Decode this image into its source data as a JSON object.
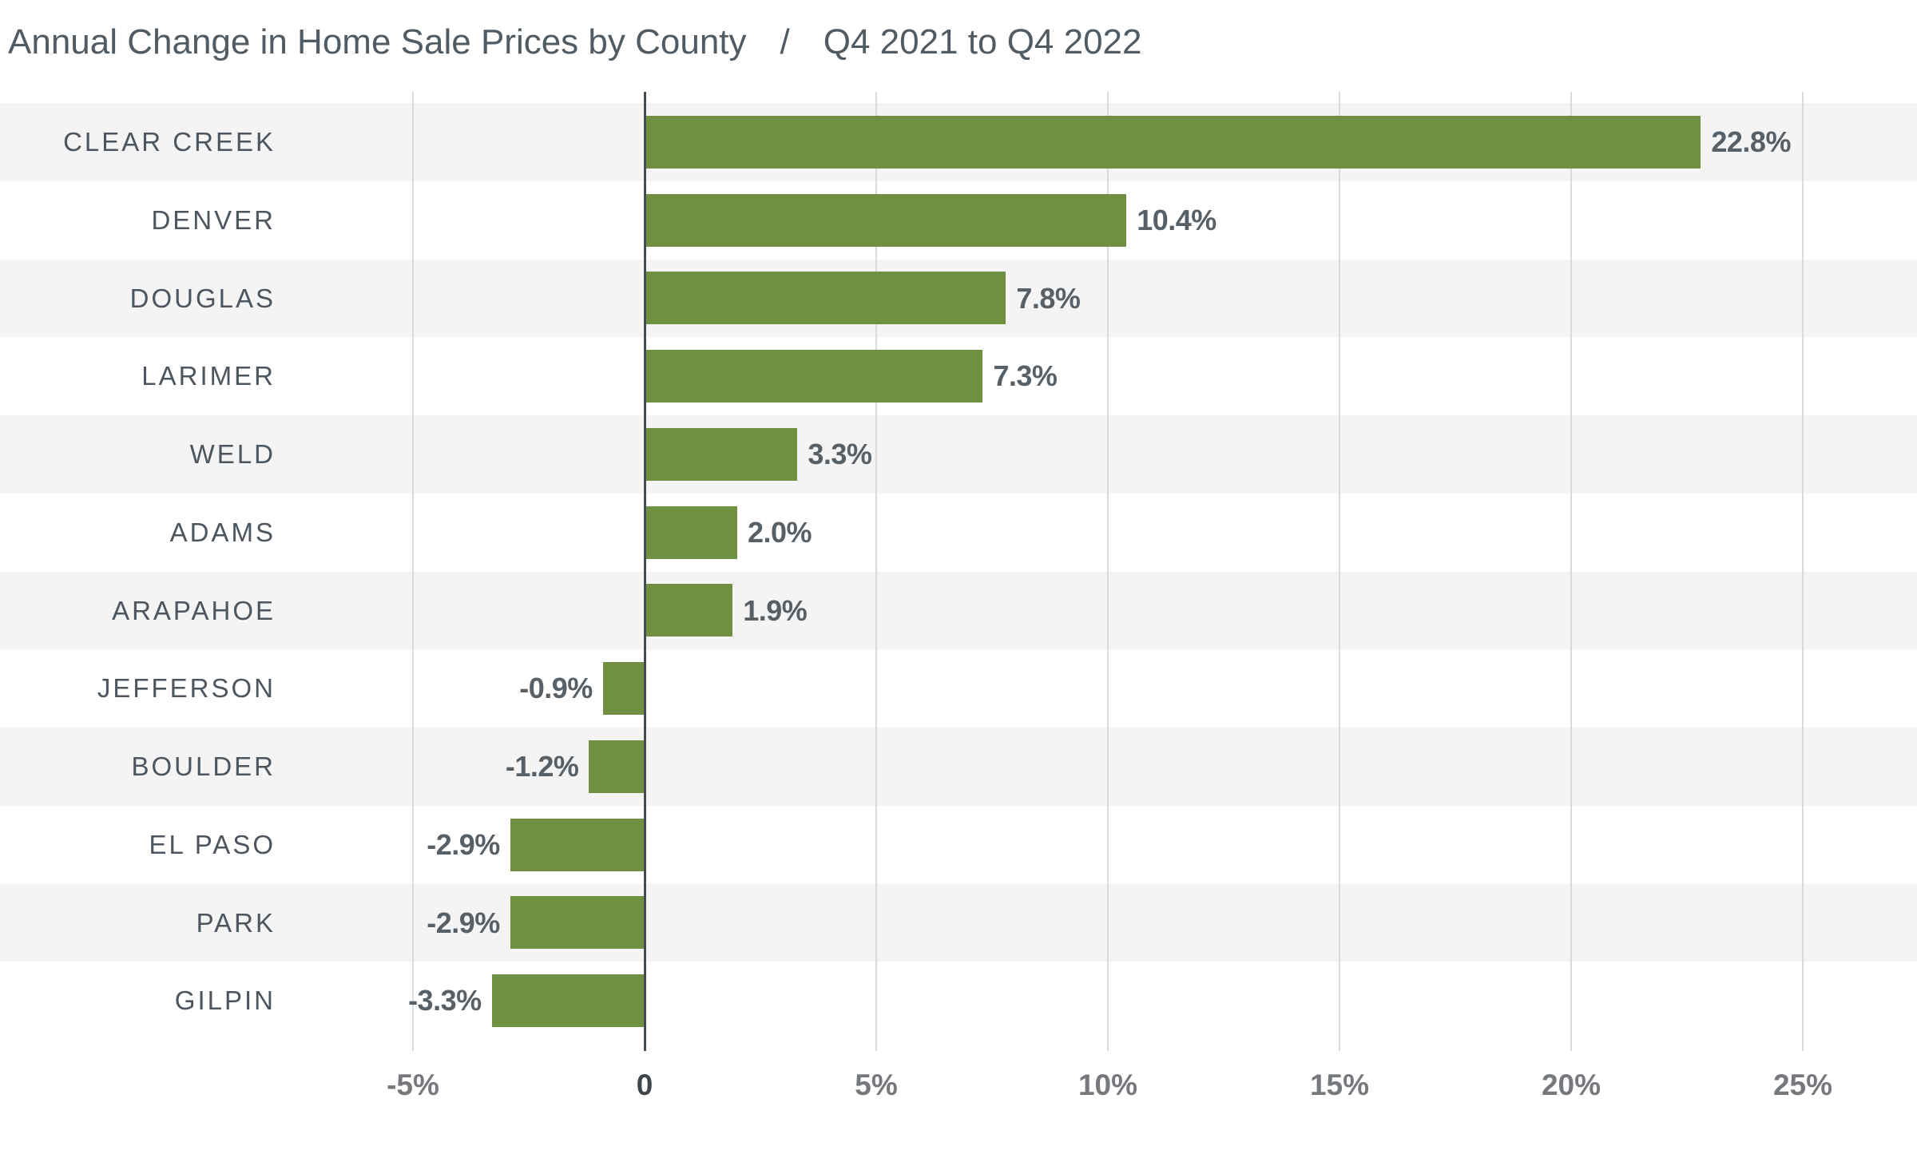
{
  "header": {
    "title_main": "Annual Change in Home Sale Prices by County",
    "title_separator": "/",
    "title_period": "Q4 2021 to Q4 2022"
  },
  "chart_data": {
    "type": "bar",
    "orientation": "horizontal",
    "title": "Annual Change in Home Sale Prices by County / Q4 2021 to Q4 2022",
    "xlabel": "",
    "ylabel": "",
    "unit": "%",
    "categories": [
      "CLEAR CREEK",
      "DENVER",
      "DOUGLAS",
      "LARIMER",
      "WELD",
      "ADAMS",
      "ARAPAHOE",
      "JEFFERSON",
      "BOULDER",
      "EL PASO",
      "PARK",
      "GILPIN"
    ],
    "values": [
      22.8,
      10.4,
      7.8,
      7.3,
      3.3,
      2.0,
      1.9,
      -0.9,
      -1.2,
      -2.9,
      -2.9,
      -3.3
    ],
    "value_labels": [
      "22.8%",
      "10.4%",
      "7.8%",
      "7.3%",
      "3.3%",
      "2.0%",
      "1.9%",
      "-0.9%",
      "-1.2%",
      "-2.9%",
      "-2.9%",
      "-3.3%"
    ],
    "x_axis": {
      "tick_values": [
        -5,
        0,
        5,
        10,
        15,
        20,
        25
      ],
      "tick_labels": [
        "-5%",
        "0",
        "5%",
        "10%",
        "15%",
        "20%",
        "25%"
      ],
      "tick_range": [
        -5,
        25
      ],
      "grid": true
    },
    "legend": null,
    "layout_hints": {
      "zebra_striping": true,
      "first_row_striped": true,
      "value_labels_outside_bar_ends": true
    },
    "colors": {
      "bar": "#6F9040",
      "stripe_row": "#F4F4F4",
      "background": "#FFFFFF",
      "gridline": "#D8DADB",
      "zero_line": "#454D54",
      "county_label": "#4D565E",
      "value_label": "#586067",
      "axis_label": "#75797D",
      "axis_label_zero": "#3E464C",
      "title": "#515B63"
    }
  }
}
